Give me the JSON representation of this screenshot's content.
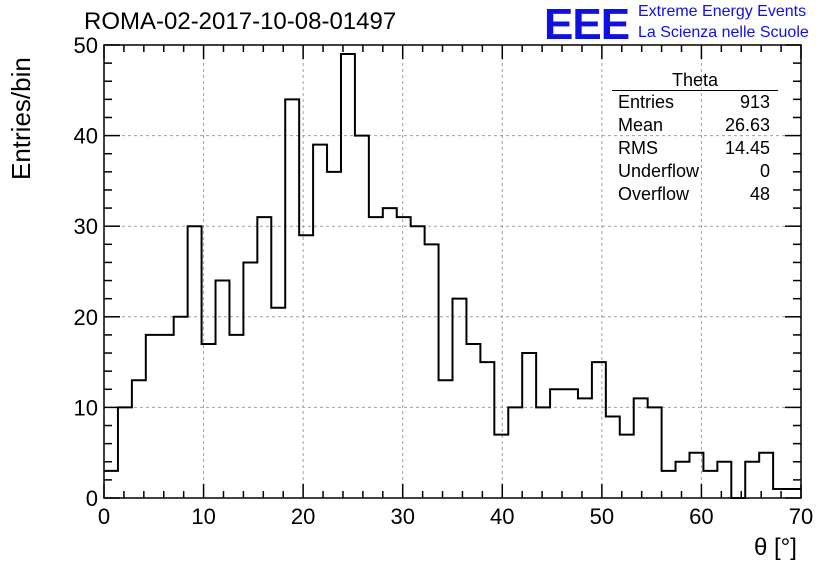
{
  "title": "ROMA-02-2017-10-08-01497",
  "logo": {
    "text": "EEE",
    "line1": "Extreme Energy Events",
    "line2": "La Scienza nelle Scuole",
    "color": "#1010e0"
  },
  "stats": {
    "name": "Theta",
    "rows": [
      {
        "label": "Entries",
        "value": "913"
      },
      {
        "label": "Mean",
        "value": "26.63"
      },
      {
        "label": "RMS",
        "value": "14.45"
      },
      {
        "label": "Underflow",
        "value": "0"
      },
      {
        "label": "Overflow",
        "value": "48"
      }
    ]
  },
  "chart_data": {
    "type": "bar",
    "title": "ROMA-02-2017-10-08-01497",
    "xlabel": "θ [°]",
    "ylabel": "Entries/bin",
    "xlim": [
      0,
      70
    ],
    "ylim": [
      0,
      50
    ],
    "bin_width": 1.4,
    "x_ticks": [
      0,
      10,
      20,
      30,
      40,
      50,
      60,
      70
    ],
    "y_ticks": [
      0,
      10,
      20,
      30,
      40,
      50
    ],
    "grid": true,
    "values": [
      3,
      10,
      13,
      18,
      18,
      20,
      30,
      17,
      24,
      18,
      26,
      31,
      21,
      44,
      29,
      39,
      36,
      49,
      40,
      31,
      32,
      31,
      30,
      28,
      13,
      22,
      17,
      15,
      7,
      10,
      16,
      10,
      12,
      12,
      11,
      15,
      9,
      7,
      11,
      10,
      3,
      4,
      5,
      3,
      4,
      0,
      4,
      5,
      1,
      1
    ]
  }
}
